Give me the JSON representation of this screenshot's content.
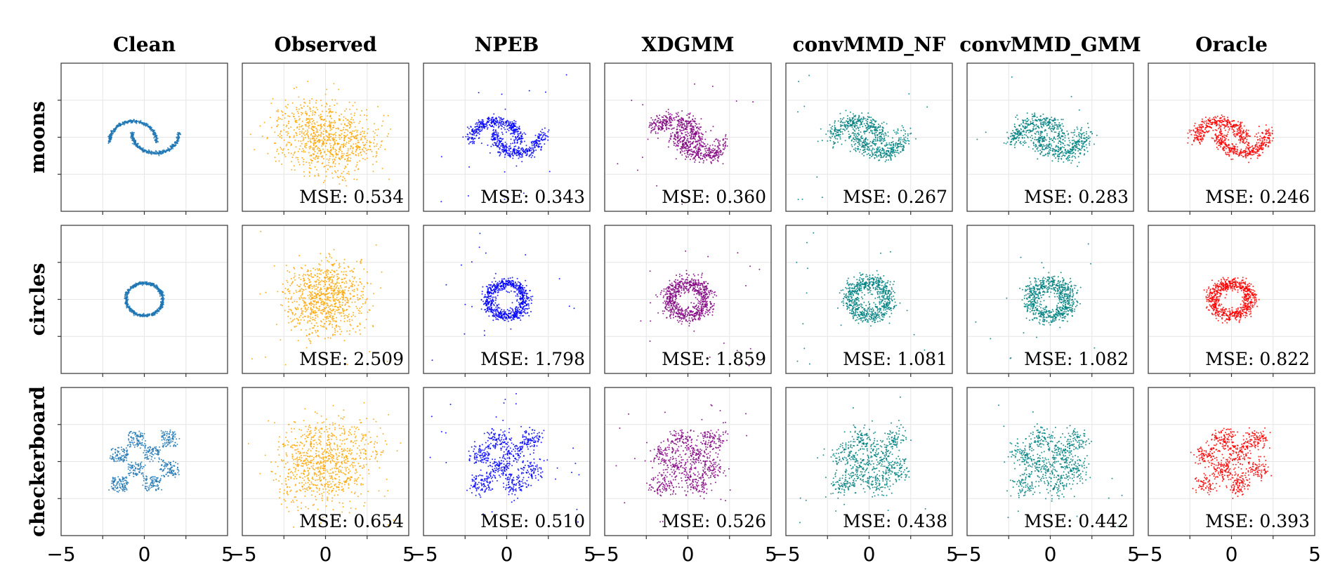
{
  "chart_data": {
    "type": "scatter",
    "columns": [
      "Clean",
      "Observed",
      "NPEB",
      "XDGMM",
      "convMMD_NF",
      "convMMD_GMM",
      "Oracle"
    ],
    "rows": [
      "moons",
      "circles",
      "checkerboard"
    ],
    "colors": {
      "Clean": "#1f77b4",
      "Observed": "#ffa500",
      "NPEB": "#0000ff",
      "XDGMM": "#800080",
      "convMMD_NF": "#008080",
      "convMMD_GMM": "#008080",
      "Oracle": "#ff0000"
    },
    "xlim": [
      -5,
      5
    ],
    "ylim": [
      -5,
      5
    ],
    "x_ticks": [
      -5,
      0,
      5
    ],
    "x_tick_labels": [
      "−5",
      "0",
      "5"
    ],
    "grid": true,
    "mse_label": "MSE: ",
    "mse": {
      "moons": [
        null,
        "0.534",
        "0.343",
        "0.360",
        "0.267",
        "0.283",
        "0.246"
      ],
      "circles": [
        null,
        "2.509",
        "1.798",
        "1.859",
        "1.081",
        "1.082",
        "0.822"
      ],
      "checkerboard": [
        null,
        "0.654",
        "0.510",
        "0.526",
        "0.438",
        "0.442",
        "0.393"
      ]
    }
  }
}
